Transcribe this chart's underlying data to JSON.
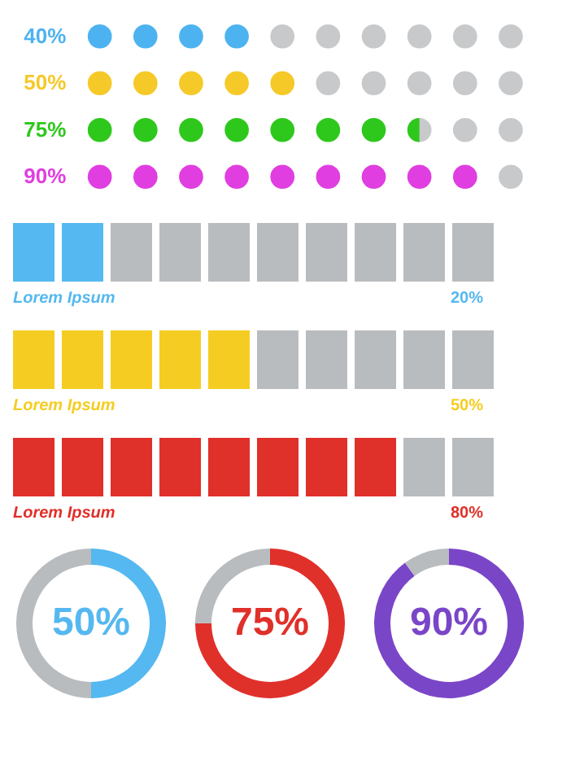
{
  "chart_data": [
    {
      "type": "other",
      "values": [
        40,
        50,
        75,
        90
      ],
      "value_labels": [
        "40%",
        "50%",
        "75%",
        "90%"
      ],
      "colors": [
        "#4db3f0",
        "#f5c928",
        "#2ec81c",
        "#e03ee0"
      ]
    },
    {
      "type": "other",
      "title": "Lorem Ipsum",
      "values": [
        20
      ],
      "value_labels": [
        "20%"
      ],
      "colors": [
        "#55b8f0"
      ]
    },
    {
      "type": "other",
      "title": "Lorem Ipsum",
      "values": [
        50
      ],
      "value_labels": [
        "50%"
      ],
      "colors": [
        "#f5cd22"
      ]
    },
    {
      "type": "other",
      "title": "Lorem Ipsum",
      "values": [
        80
      ],
      "value_labels": [
        "80%"
      ],
      "colors": [
        "#e0302a"
      ]
    },
    {
      "type": "donut",
      "categories": [
        null,
        null
      ],
      "values": [
        50,
        50
      ],
      "colors": [
        "#55b8f0",
        "#b9bcbf"
      ],
      "annotations": [
        "50%"
      ]
    },
    {
      "type": "donut",
      "categories": [
        null,
        null
      ],
      "values": [
        75,
        25
      ],
      "colors": [
        "#e0302a",
        "#b9bcbf"
      ],
      "annotations": [
        "75%"
      ]
    },
    {
      "type": "donut",
      "categories": [
        null,
        null
      ],
      "values": [
        90,
        10
      ],
      "colors": [
        "#7a46c8",
        "#b9bcbf"
      ],
      "annotations": [
        "90%"
      ]
    }
  ]
}
